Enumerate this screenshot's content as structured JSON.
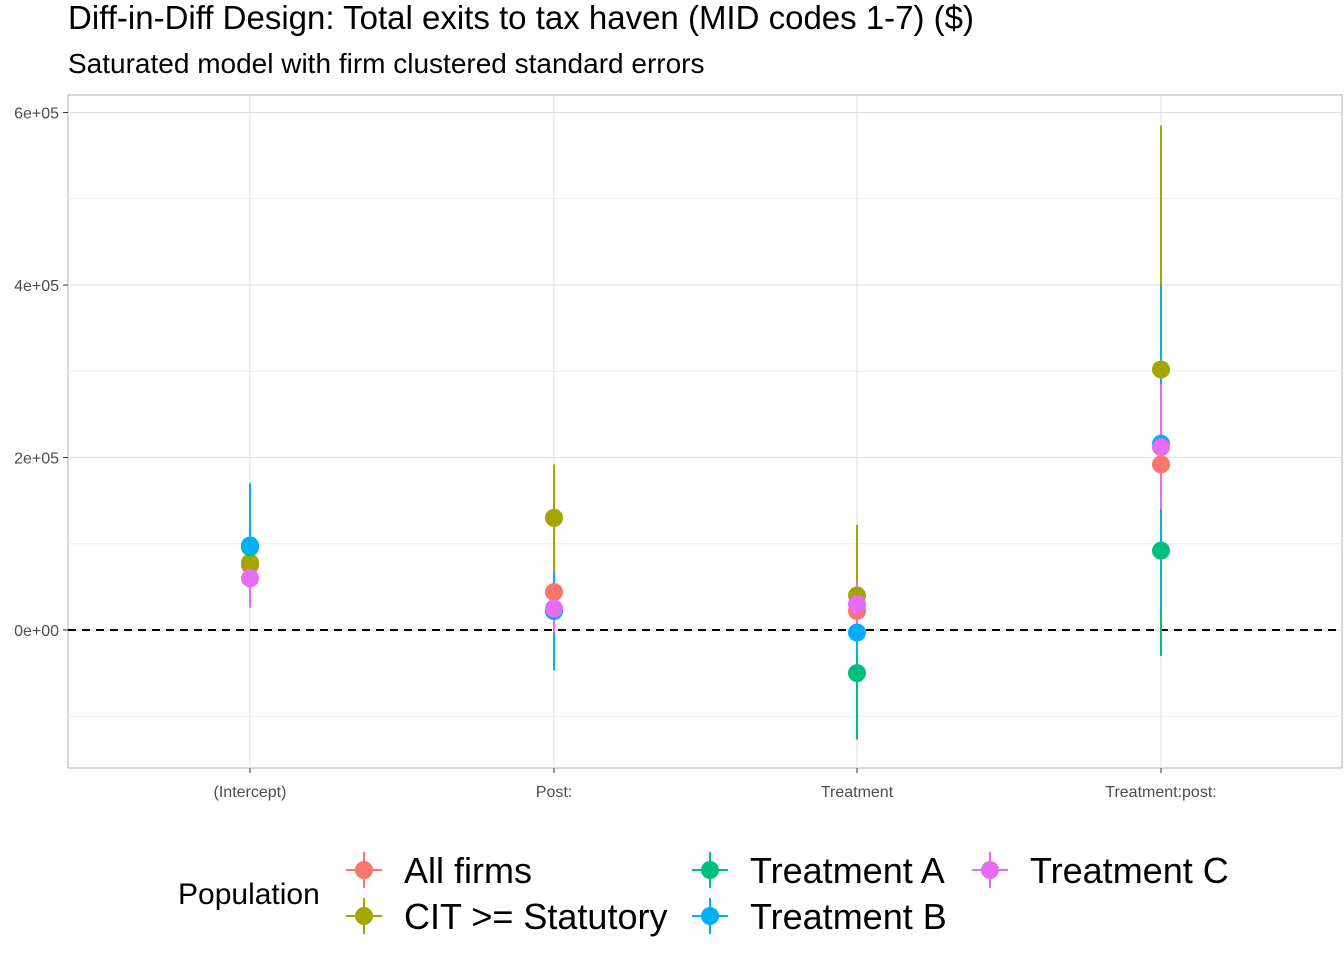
{
  "chart_data": {
    "type": "scatter",
    "title": "Diff-in-Diff Design: Total exits to tax haven (MID codes 1-7)  ($)",
    "subtitle": "Saturated model with firm clustered standard errors",
    "xlabel": "",
    "ylabel": "",
    "categories": [
      "(Intercept)",
      "Post:",
      "Treatment",
      "Treatment:post:"
    ],
    "y_ticks": [
      0,
      200000,
      400000,
      600000
    ],
    "y_tick_labels": [
      "0e+00",
      "2e+05",
      "4e+05",
      "6e+05"
    ],
    "ylim": [
      -160000,
      620000
    ],
    "grid": true,
    "reference_line": {
      "y": 0,
      "style": "dashed"
    },
    "legend": {
      "title": "Population",
      "position": "bottom"
    },
    "series": [
      {
        "name": "All firms",
        "color": "#F8766D",
        "points": [
          {
            "x": "(Intercept)",
            "y": 75000,
            "lo": 50000,
            "hi": 105000
          },
          {
            "x": "Post:",
            "y": 44000,
            "lo": 15000,
            "hi": 75000
          },
          {
            "x": "Treatment",
            "y": 22000,
            "lo": -5000,
            "hi": 50000
          },
          {
            "x": "Treatment:post:",
            "y": 192000,
            "lo": 120000,
            "hi": 265000
          }
        ]
      },
      {
        "name": "CIT >= Statutory",
        "color": "#A3A500",
        "points": [
          {
            "x": "(Intercept)",
            "y": 78000,
            "lo": 45000,
            "hi": 112000
          },
          {
            "x": "Post:",
            "y": 130000,
            "lo": 68000,
            "hi": 192000
          },
          {
            "x": "Treatment",
            "y": 40000,
            "lo": -42000,
            "hi": 122000
          },
          {
            "x": "Treatment:post:",
            "y": 302000,
            "lo": 20000,
            "hi": 585000
          }
        ]
      },
      {
        "name": "Treatment A",
        "color": "#00BF7D",
        "points": [
          {
            "x": "(Intercept)",
            "y": 96000,
            "lo": 30000,
            "hi": 162000
          },
          {
            "x": "Post:",
            "y": 22000,
            "lo": -35000,
            "hi": 65000
          },
          {
            "x": "Treatment",
            "y": -50000,
            "lo": -127000,
            "hi": 25000
          },
          {
            "x": "Treatment:post:",
            "y": 92000,
            "lo": -30000,
            "hi": 215000
          }
        ]
      },
      {
        "name": "Treatment B",
        "color": "#00B0F6",
        "points": [
          {
            "x": "(Intercept)",
            "y": 98000,
            "lo": 28000,
            "hi": 170000
          },
          {
            "x": "Post:",
            "y": 22000,
            "lo": -47000,
            "hi": 68000
          },
          {
            "x": "Treatment",
            "y": -3000,
            "lo": -30000,
            "hi": 22000
          },
          {
            "x": "Treatment:post:",
            "y": 216000,
            "lo": 20000,
            "hi": 400000
          }
        ]
      },
      {
        "name": "Treatment C",
        "color": "#E76BF3",
        "points": [
          {
            "x": "(Intercept)",
            "y": 60000,
            "lo": 26000,
            "hi": 95000
          },
          {
            "x": "Post:",
            "y": 25000,
            "lo": -3000,
            "hi": 55000
          },
          {
            "x": "Treatment",
            "y": 30000,
            "lo": 5000,
            "hi": 56000
          },
          {
            "x": "Treatment:post:",
            "y": 212000,
            "lo": 140000,
            "hi": 285000
          }
        ]
      }
    ]
  }
}
